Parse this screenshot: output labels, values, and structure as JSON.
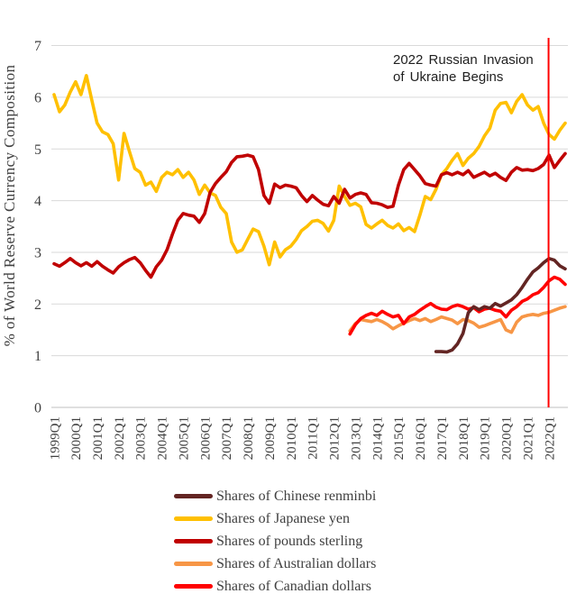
{
  "y_axis": {
    "label": "% of World Reserve Currency Composition",
    "ticks": [
      0,
      1,
      2,
      3,
      4,
      5,
      6,
      7
    ]
  },
  "x_axis": {
    "tick_labels": [
      "1999Q1",
      "2000Q1",
      "2001Q1",
      "2002Q1",
      "2003Q1",
      "2004Q1",
      "2005Q1",
      "2006Q1",
      "2007Q1",
      "2008Q1",
      "2009Q1",
      "2010Q1",
      "2011Q1",
      "2012Q1",
      "2013Q1",
      "2014Q1",
      "2015Q1",
      "2016Q1",
      "2017Q1",
      "2018Q1",
      "2019Q1",
      "2020Q1",
      "2021Q1",
      "2022Q1"
    ]
  },
  "annotation": {
    "line1": "2022 Russian Invasion",
    "line2": "of Ukraine Begins",
    "marker_quarter": "2022Q1",
    "marker_color": "#FF0000"
  },
  "legend": [
    {
      "label": "Shares of Chinese renminbi",
      "color": "#632523"
    },
    {
      "label": "Shares of Japanese yen",
      "color": "#FFC000"
    },
    {
      "label": "Shares of pounds sterling",
      "color": "#C00000"
    },
    {
      "label": "Shares of Australian dollars",
      "color": "#F79646"
    },
    {
      "label": "Shares of Canadian dollars",
      "color": "#FF0000"
    }
  ],
  "chart_data": {
    "type": "line",
    "title": "",
    "xlabel": "",
    "ylabel": "% of World Reserve Currency Composition",
    "ylim": [
      0,
      7
    ],
    "y_ticks": [
      0,
      1,
      2,
      3,
      4,
      5,
      6,
      7
    ],
    "grid": true,
    "x_unit": "quarter",
    "x_start": "1999Q1",
    "x_end": "2022Q4",
    "x_tick_labels": [
      "1999Q1",
      "2000Q1",
      "2001Q1",
      "2002Q1",
      "2003Q1",
      "2004Q1",
      "2005Q1",
      "2006Q1",
      "2007Q1",
      "2008Q1",
      "2009Q1",
      "2010Q1",
      "2011Q1",
      "2012Q1",
      "2013Q1",
      "2014Q1",
      "2015Q1",
      "2016Q1",
      "2017Q1",
      "2018Q1",
      "2019Q1",
      "2020Q1",
      "2021Q1",
      "2022Q1"
    ],
    "legend_position": "bottom",
    "vline": {
      "quarter": "2022Q1",
      "color": "#FF0000",
      "label": "2022 Russian Invasion of Ukraine Begins"
    },
    "series": [
      {
        "name": "Shares of Chinese renminbi",
        "color": "#632523",
        "start": "2016Q4",
        "values": [
          1.08,
          1.08,
          1.07,
          1.11,
          1.23,
          1.43,
          1.83,
          1.95,
          1.89,
          1.95,
          1.92,
          2.01,
          1.96,
          2.02,
          2.08,
          2.18,
          2.32,
          2.48,
          2.62,
          2.7,
          2.8,
          2.88,
          2.85,
          2.74,
          2.68
        ]
      },
      {
        "name": "Shares of Japanese yen",
        "color": "#FFC000",
        "start": "1999Q1",
        "values": [
          6.05,
          5.72,
          5.85,
          6.1,
          6.3,
          6.05,
          6.42,
          5.95,
          5.5,
          5.33,
          5.28,
          5.1,
          4.4,
          5.3,
          4.95,
          4.62,
          4.55,
          4.3,
          4.36,
          4.18,
          4.45,
          4.55,
          4.5,
          4.6,
          4.45,
          4.55,
          4.4,
          4.12,
          4.3,
          4.15,
          4.1,
          3.87,
          3.75,
          3.2,
          3.0,
          3.05,
          3.25,
          3.45,
          3.4,
          3.12,
          2.76,
          3.2,
          2.91,
          3.05,
          3.12,
          3.25,
          3.42,
          3.5,
          3.6,
          3.62,
          3.56,
          3.41,
          3.62,
          4.28,
          4.08,
          3.91,
          3.95,
          3.88,
          3.54,
          3.47,
          3.55,
          3.62,
          3.52,
          3.47,
          3.55,
          3.42,
          3.48,
          3.4,
          3.72,
          4.08,
          4.02,
          4.22,
          4.5,
          4.62,
          4.78,
          4.91,
          4.68,
          4.82,
          4.91,
          5.05,
          5.25,
          5.4,
          5.75,
          5.88,
          5.9,
          5.7,
          5.92,
          6.05,
          5.85,
          5.75,
          5.82,
          5.5,
          5.28,
          5.19,
          5.36,
          5.5
        ]
      },
      {
        "name": "Shares of pounds sterling",
        "color": "#C00000",
        "start": "1999Q1",
        "values": [
          2.78,
          2.73,
          2.8,
          2.88,
          2.8,
          2.74,
          2.8,
          2.73,
          2.82,
          2.73,
          2.66,
          2.6,
          2.72,
          2.8,
          2.86,
          2.9,
          2.8,
          2.65,
          2.52,
          2.72,
          2.85,
          3.05,
          3.35,
          3.62,
          3.75,
          3.72,
          3.7,
          3.58,
          3.75,
          4.16,
          4.33,
          4.45,
          4.56,
          4.74,
          4.85,
          4.86,
          4.88,
          4.85,
          4.6,
          4.1,
          3.95,
          4.32,
          4.25,
          4.3,
          4.28,
          4.25,
          4.1,
          3.98,
          4.1,
          4.01,
          3.93,
          3.9,
          4.08,
          3.95,
          4.22,
          4.05,
          4.12,
          4.15,
          4.12,
          3.96,
          3.95,
          3.92,
          3.87,
          3.89,
          4.3,
          4.6,
          4.72,
          4.6,
          4.48,
          4.33,
          4.3,
          4.28,
          4.5,
          4.54,
          4.5,
          4.55,
          4.5,
          4.58,
          4.45,
          4.5,
          4.55,
          4.48,
          4.53,
          4.45,
          4.39,
          4.55,
          4.64,
          4.59,
          4.6,
          4.58,
          4.62,
          4.7,
          4.88,
          4.64,
          4.78,
          4.91
        ]
      },
      {
        "name": "Shares of Australian dollars",
        "color": "#F79646",
        "start": "2012Q4",
        "values": [
          1.48,
          1.62,
          1.7,
          1.68,
          1.66,
          1.7,
          1.66,
          1.6,
          1.52,
          1.58,
          1.63,
          1.68,
          1.72,
          1.68,
          1.72,
          1.66,
          1.7,
          1.75,
          1.72,
          1.69,
          1.62,
          1.7,
          1.68,
          1.63,
          1.55,
          1.58,
          1.62,
          1.66,
          1.7,
          1.5,
          1.45,
          1.65,
          1.75,
          1.78,
          1.8,
          1.78,
          1.82,
          1.84,
          1.88,
          1.92,
          1.95
        ]
      },
      {
        "name": "Shares of Canadian dollars",
        "color": "#FF0000",
        "start": "2012Q4",
        "values": [
          1.42,
          1.6,
          1.72,
          1.78,
          1.82,
          1.78,
          1.86,
          1.8,
          1.75,
          1.78,
          1.62,
          1.75,
          1.8,
          1.88,
          1.95,
          2.01,
          1.94,
          1.9,
          1.89,
          1.95,
          1.98,
          1.95,
          1.9,
          1.93,
          1.85,
          1.9,
          1.92,
          1.88,
          1.86,
          1.75,
          1.88,
          1.95,
          2.05,
          2.1,
          2.18,
          2.22,
          2.32,
          2.45,
          2.52,
          2.48,
          2.38
        ]
      }
    ]
  }
}
